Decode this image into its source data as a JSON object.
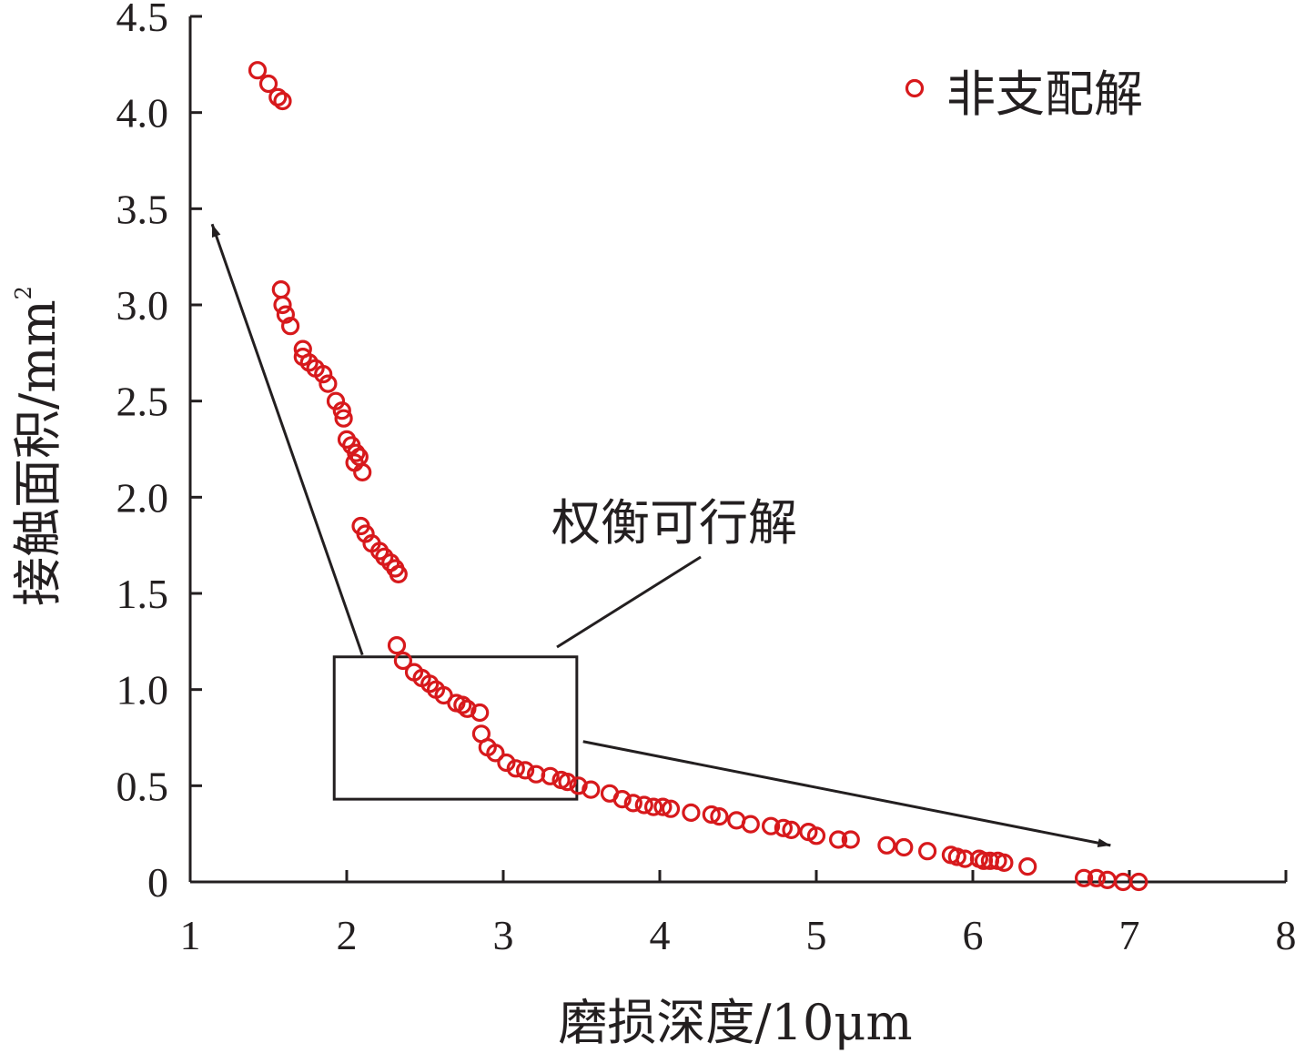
{
  "chart_data": {
    "type": "scatter",
    "xlabel": "磨损深度/10μm",
    "ylabel": "接触面积/mm",
    "ylabel_sup": "2",
    "xlim": [
      1,
      8
    ],
    "ylim": [
      0,
      4.5
    ],
    "xticks": [
      "1",
      "2",
      "3",
      "4",
      "5",
      "6",
      "7",
      "8"
    ],
    "yticks": [
      "0",
      "0.5",
      "1.0",
      "1.5",
      "2.0",
      "2.5",
      "3.0",
      "3.5",
      "4.0",
      "4.5"
    ],
    "grid": false,
    "legend_position": "top-right",
    "marker_color": "#d7191c",
    "series": [
      {
        "name": "非支配解",
        "x": [
          1.43,
          1.5,
          1.56,
          1.59,
          1.58,
          1.59,
          1.61,
          1.64,
          1.72,
          1.72,
          1.76,
          1.8,
          1.85,
          1.88,
          1.93,
          1.97,
          1.98,
          2.0,
          2.03,
          2.06,
          2.08,
          2.05,
          2.1,
          2.09,
          2.12,
          2.16,
          2.21,
          2.24,
          2.28,
          2.31,
          2.33,
          2.32,
          2.36,
          2.43,
          2.48,
          2.53,
          2.57,
          2.62,
          2.7,
          2.74,
          2.77,
          2.85,
          2.86,
          2.9,
          2.95,
          3.02,
          3.08,
          3.14,
          3.21,
          3.3,
          3.37,
          3.41,
          3.48,
          3.56,
          3.68,
          3.76,
          3.83,
          3.9,
          3.96,
          4.02,
          4.07,
          4.2,
          4.33,
          4.38,
          4.49,
          4.58,
          4.71,
          4.79,
          4.84,
          4.95,
          5.0,
          5.14,
          5.22,
          5.45,
          5.56,
          5.71,
          5.86,
          5.9,
          5.95,
          6.04,
          6.07,
          6.11,
          6.16,
          6.2,
          6.35,
          6.71,
          6.79,
          6.86,
          6.96,
          7.06
        ],
        "y": [
          4.22,
          4.15,
          4.08,
          4.06,
          3.08,
          3.0,
          2.95,
          2.89,
          2.77,
          2.73,
          2.7,
          2.67,
          2.64,
          2.59,
          2.5,
          2.45,
          2.41,
          2.3,
          2.27,
          2.23,
          2.21,
          2.18,
          2.13,
          1.85,
          1.81,
          1.76,
          1.72,
          1.69,
          1.66,
          1.63,
          1.6,
          1.23,
          1.15,
          1.09,
          1.06,
          1.03,
          1.0,
          0.97,
          0.93,
          0.92,
          0.9,
          0.88,
          0.77,
          0.7,
          0.67,
          0.62,
          0.59,
          0.58,
          0.56,
          0.55,
          0.53,
          0.52,
          0.5,
          0.48,
          0.46,
          0.43,
          0.41,
          0.4,
          0.39,
          0.39,
          0.38,
          0.36,
          0.35,
          0.34,
          0.32,
          0.3,
          0.29,
          0.28,
          0.27,
          0.26,
          0.24,
          0.22,
          0.22,
          0.19,
          0.18,
          0.16,
          0.14,
          0.13,
          0.12,
          0.12,
          0.11,
          0.11,
          0.11,
          0.1,
          0.08,
          0.02,
          0.02,
          0.01,
          0.0,
          0.0
        ]
      }
    ],
    "annotation": {
      "label": "权衡可行解",
      "box_x": [
        1.92,
        3.47
      ],
      "box_y": [
        0.43,
        1.17
      ]
    },
    "arrows": [
      {
        "from": [
          2.1,
          1.18
        ],
        "to": [
          1.14,
          3.42
        ]
      },
      {
        "from": [
          3.51,
          0.73
        ],
        "to": [
          6.88,
          0.19
        ]
      }
    ]
  }
}
